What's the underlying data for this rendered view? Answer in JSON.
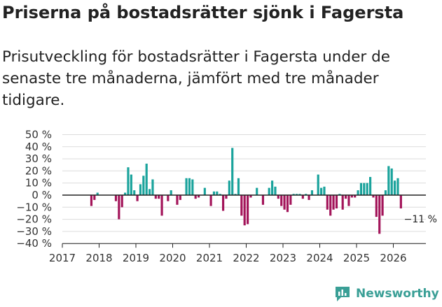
{
  "header": {
    "title": "Priserna på bostadsrätter sjönk i Fagersta",
    "subtitle": "Prisutveckling för bostadsrätter i Fagersta under de senaste tre månaderna, jämfört med tre månader tidigare."
  },
  "brand": {
    "name": "Newsworthy"
  },
  "colors": {
    "positive": "#1aa39c",
    "negative": "#a3155a",
    "grid": "#dcdcdc",
    "axis": "#222222",
    "brand": "#3a9f96"
  },
  "chart_data": {
    "type": "bar",
    "title": "Priserna på bostadsrätter sjönk i Fagersta",
    "xlabel": "",
    "ylabel": "",
    "ylim": [
      -40,
      50
    ],
    "y_ticks": [
      50,
      40,
      30,
      20,
      10,
      0,
      -10,
      -20,
      -30,
      -40
    ],
    "y_tick_labels": [
      "50 %",
      "40 %",
      "30 %",
      "20 %",
      "10 %",
      "0 %",
      "−10 %",
      "−20 %",
      "−30 %",
      "−40 %"
    ],
    "x_ticks": [
      "2017",
      "2018",
      "2019",
      "2020",
      "2021",
      "2022",
      "2023",
      "2024",
      "2025",
      "2026"
    ],
    "x_start": "2017-01",
    "series": [
      {
        "name": "Prisutveckling",
        "start": "2017-10",
        "values": [
          -9,
          -4,
          2,
          0,
          0,
          0,
          0,
          0,
          -5,
          -20,
          -10,
          2,
          23,
          17,
          4,
          -5,
          9,
          16,
          26,
          5,
          13,
          -3,
          -3,
          -17,
          0,
          -5,
          4,
          0,
          -8,
          -4,
          0,
          14,
          14,
          13,
          -3,
          -2,
          0,
          6,
          0,
          -9,
          3,
          3,
          1,
          -13,
          -3,
          12,
          39,
          1,
          14,
          -17,
          -25,
          -24,
          -2,
          0,
          6,
          0,
          -8,
          0,
          6,
          12,
          7,
          -3,
          -9,
          -12,
          -14,
          -8,
          1,
          1,
          1,
          -3,
          1,
          -4,
          4,
          0,
          17,
          6,
          7,
          -12,
          -17,
          -12,
          -11,
          1,
          -12,
          -3,
          -9,
          -2,
          -2,
          4,
          10,
          10,
          10,
          15,
          -2,
          -18,
          -32,
          -17,
          4,
          24,
          22,
          12,
          14,
          -11
        ]
      }
    ],
    "annotations": [
      {
        "text": "−11 %",
        "target": "last"
      }
    ]
  }
}
